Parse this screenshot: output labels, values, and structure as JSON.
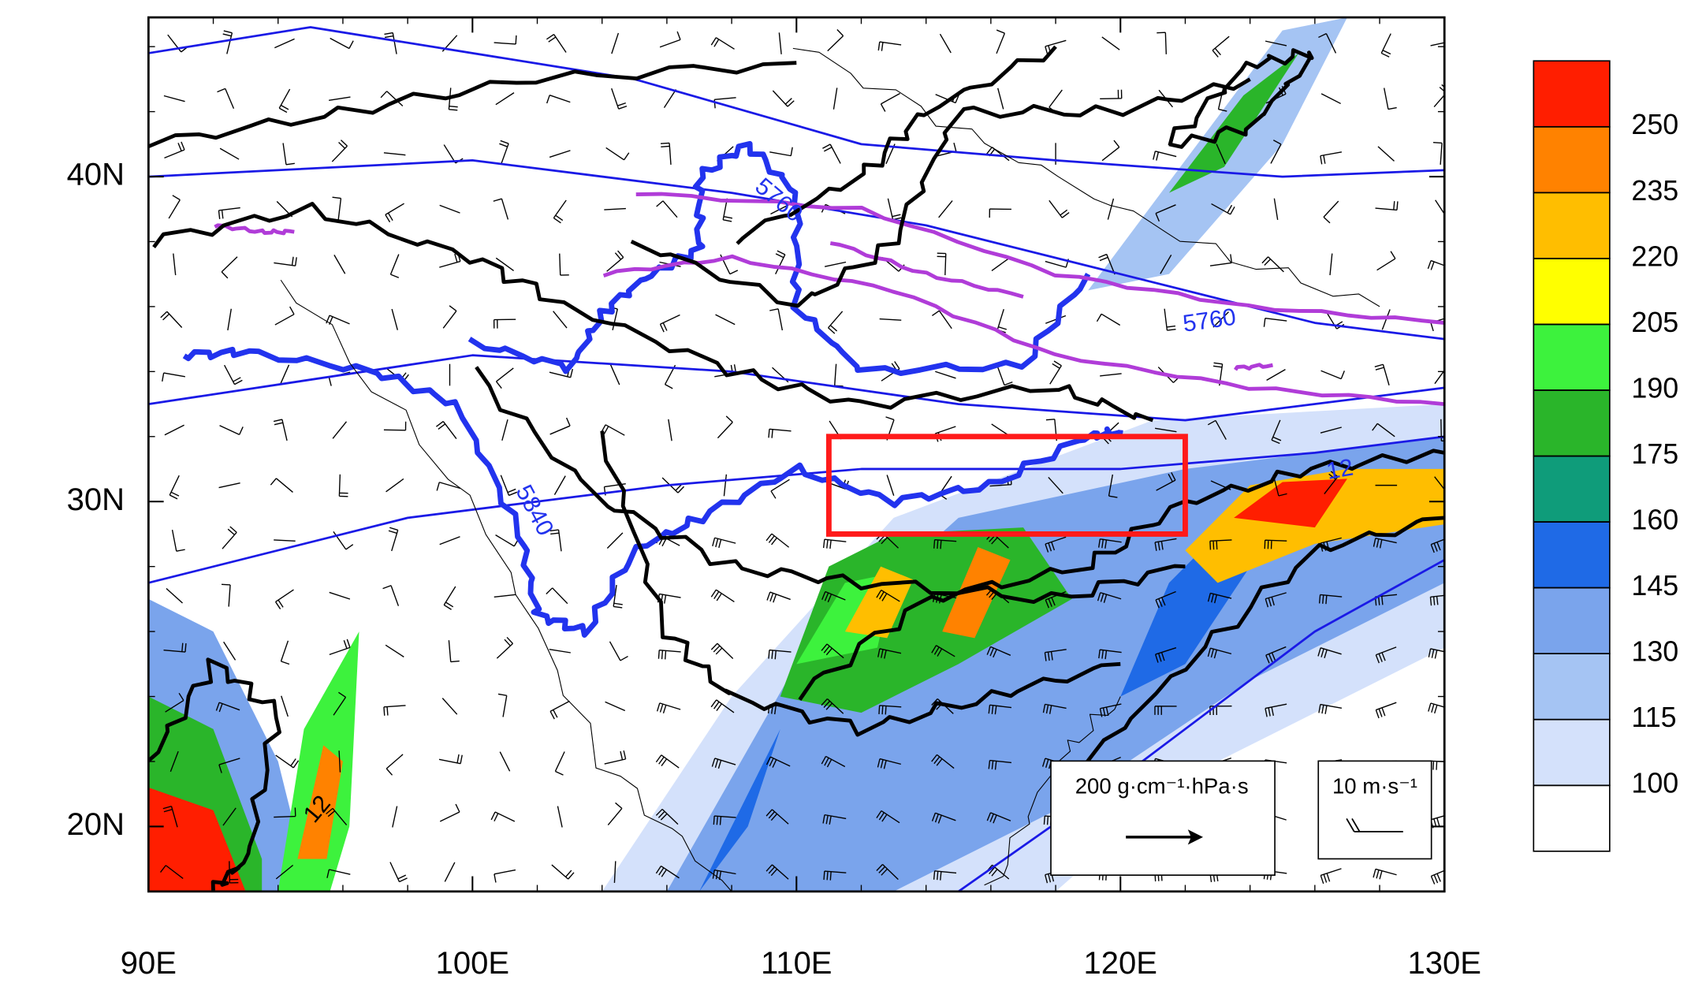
{
  "map": {
    "xlim": [
      90,
      130
    ],
    "ylim": [
      18,
      44.9
    ],
    "xticks": [
      {
        "value": 90,
        "label": "90E"
      },
      {
        "value": 100,
        "label": "100E"
      },
      {
        "value": 110,
        "label": "110E"
      },
      {
        "value": 120,
        "label": "120E"
      },
      {
        "value": 130,
        "label": "130E"
      }
    ],
    "yticks": [
      {
        "value": 20,
        "label": "20N"
      },
      {
        "value": 30,
        "label": "30N"
      },
      {
        "value": 40,
        "label": "40N"
      }
    ],
    "colorbar": {
      "levels": [
        100,
        115,
        130,
        145,
        160,
        175,
        190,
        205,
        220,
        235,
        250
      ],
      "colors": [
        "#ffffff",
        "#d4e1fb",
        "#a5c4f3",
        "#7aa4ec",
        "#1f6ae6",
        "#0f9c7a",
        "#2ab52a",
        "#3df23d",
        "#ffff00",
        "#ffbe00",
        "#ff8200",
        "#ff1e00"
      ]
    },
    "contour_labels": [
      "5760",
      "5840",
      "5760",
      "12",
      "12"
    ],
    "legend": {
      "vector": "200 g·cm⁻¹·hPa·s",
      "barb": "10 m·s⁻¹"
    }
  }
}
